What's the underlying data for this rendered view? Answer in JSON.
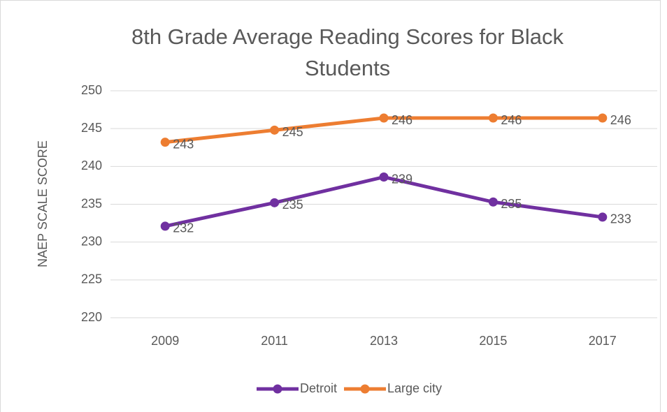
{
  "chart_data": {
    "type": "line",
    "title": "8th Grade Average Reading Scores for Black Students",
    "y_label": "NAEP SCALE SCORE",
    "categories": [
      "2009",
      "2011",
      "2013",
      "2015",
      "2017"
    ],
    "series": [
      {
        "name": "Detroit",
        "color": "#7030a0",
        "values": [
          232.1,
          235.2,
          238.6,
          235.3,
          233.3
        ],
        "value_labels": [
          "232",
          "235",
          "239",
          "235",
          "233"
        ]
      },
      {
        "name": "Large city",
        "color": "#ed7d31",
        "values": [
          243.2,
          244.8,
          246.4,
          246.4,
          246.4
        ],
        "value_labels": [
          "243",
          "245",
          "246",
          "246",
          "246"
        ]
      }
    ],
    "ylim": [
      220,
      250
    ],
    "yticks": [
      220,
      225,
      230,
      235,
      240,
      245,
      250
    ],
    "grid": true,
    "legend": "bottom"
  }
}
